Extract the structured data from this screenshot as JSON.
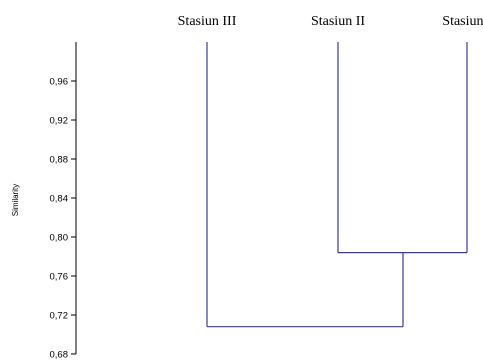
{
  "chart_data": {
    "type": "dendrogram",
    "ylabel": "Similarity",
    "ylim": [
      0.68,
      1.0
    ],
    "yticks": [
      "0,96",
      "0,92",
      "0,88",
      "0,84",
      "0,80",
      "0,76",
      "0,72",
      "0,68"
    ],
    "ytick_values": [
      0.96,
      0.92,
      0.88,
      0.84,
      0.8,
      0.76,
      0.72,
      0.68
    ],
    "leaves": [
      "Stasiun III",
      "Stasiun II",
      "Stasiun I"
    ],
    "merges": [
      {
        "left": "Stasiun II",
        "right": "Stasiun I",
        "similarity": 0.784
      },
      {
        "left": "Stasiun III",
        "right": "Stasiun II + Stasiun I",
        "similarity": 0.708
      }
    ],
    "colors": {
      "branch": "#3a3a9a",
      "axis": "#000000"
    }
  }
}
